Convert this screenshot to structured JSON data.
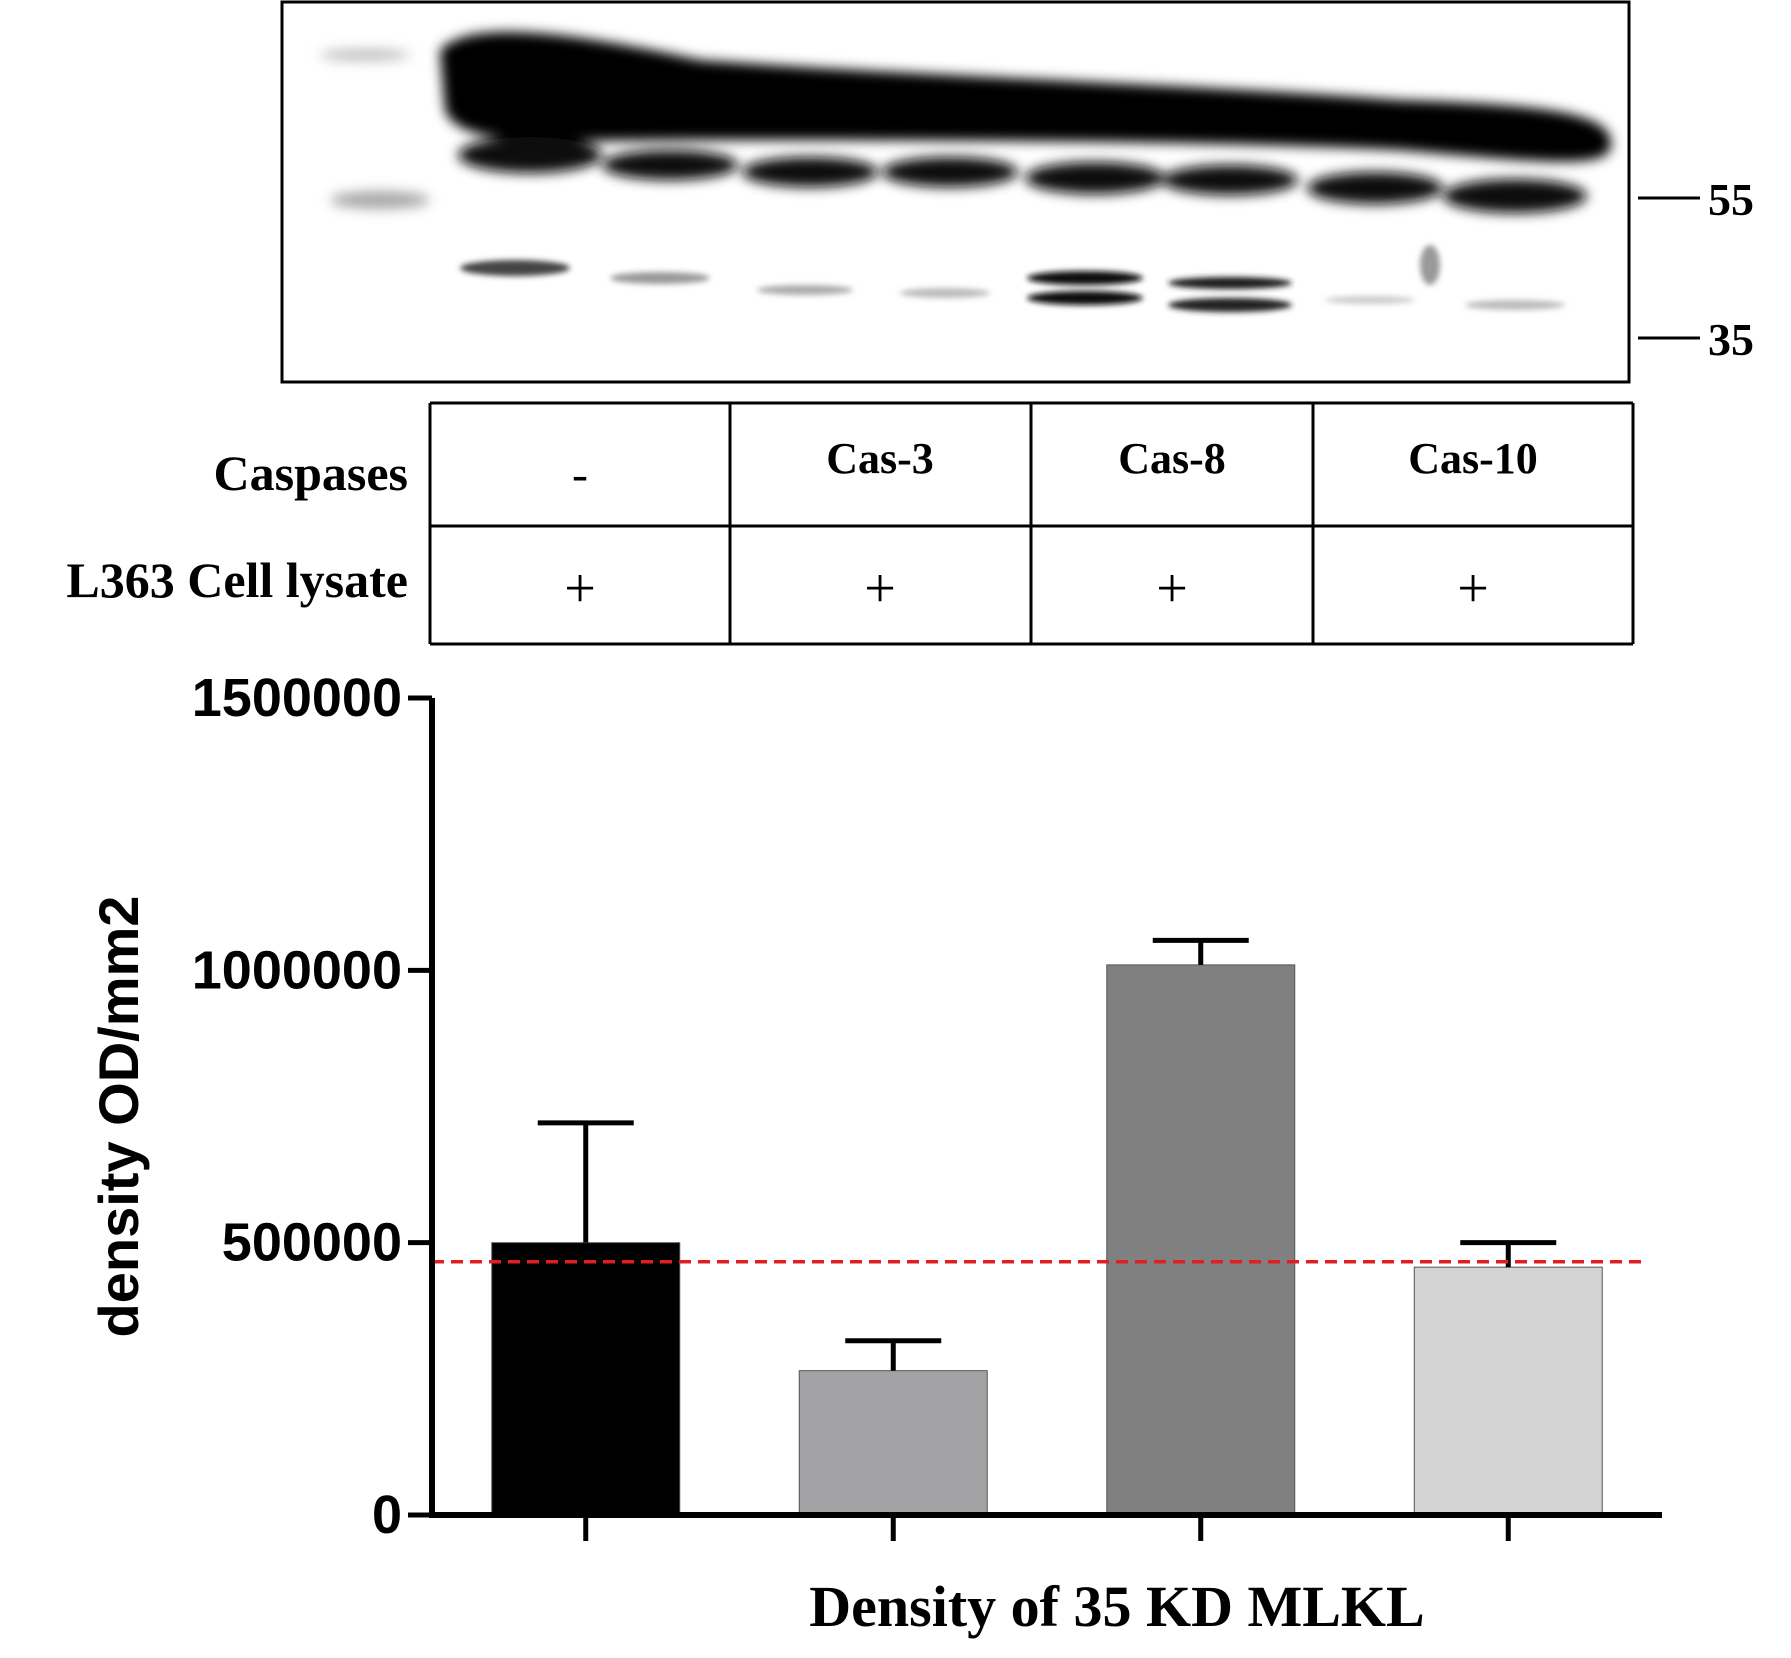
{
  "blot": {
    "markers": [
      {
        "label": "55",
        "kda": 55
      },
      {
        "label": "35",
        "kda": 35
      }
    ],
    "lane_count": 8
  },
  "condition_table": {
    "rows": [
      {
        "label": "Caspases",
        "cells": [
          "-",
          "Cas-3",
          "Cas-8",
          "Cas-10"
        ]
      },
      {
        "label": "L363 Cell lysate",
        "cells": [
          "+",
          "+",
          "+",
          "+"
        ]
      }
    ]
  },
  "chart_data": {
    "type": "bar",
    "title": "",
    "xlabel": "Density of 35 KD MLKL",
    "ylabel": "density OD/mm2",
    "ylim": [
      0,
      1500000
    ],
    "yticks": [
      0,
      500000,
      1000000,
      1500000
    ],
    "ytick_labels": [
      "0",
      "500000",
      "1000000",
      "1500000"
    ],
    "categories": [
      "-",
      "Cas-3",
      "Cas-8",
      "Cas-10"
    ],
    "values": [
      500000,
      265000,
      1010000,
      455000
    ],
    "error_upper": [
      720000,
      320000,
      1055000,
      500000
    ],
    "bar_colors": [
      "#000000",
      "#a3a3a6",
      "#808080",
      "#d4d4d4"
    ],
    "reference_line": {
      "value": 465000,
      "color": "#e02020",
      "style": "dashed"
    },
    "grid": false,
    "legend": "none"
  }
}
